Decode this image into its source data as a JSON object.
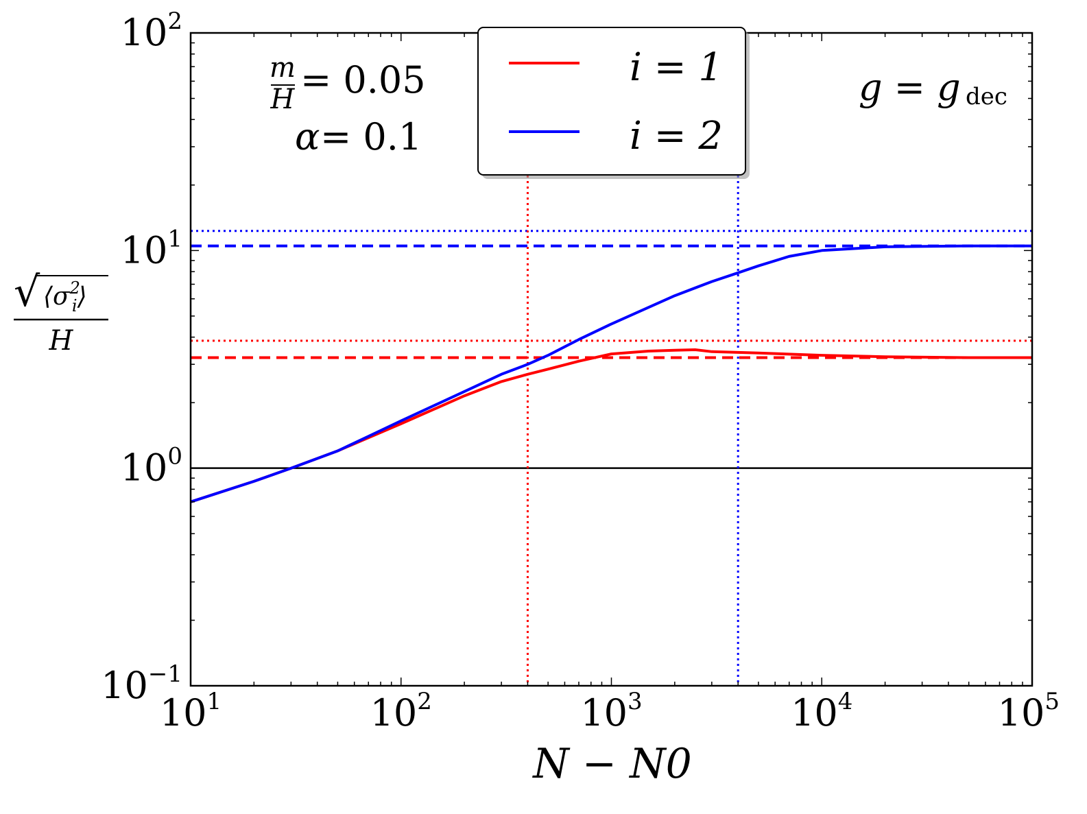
{
  "chart_data": {
    "type": "line",
    "x_scale": "log",
    "y_scale": "log",
    "xlim": [
      10,
      100000
    ],
    "ylim": [
      0.1,
      100
    ],
    "xlabel": "N − N0",
    "ylabel": "√⟨σi²⟩ / H",
    "x_ticks": [
      {
        "base": "10",
        "exp": "1",
        "value": 10
      },
      {
        "base": "10",
        "exp": "2",
        "value": 100
      },
      {
        "base": "10",
        "exp": "3",
        "value": 1000
      },
      {
        "base": "10",
        "exp": "4",
        "value": 10000
      },
      {
        "base": "10",
        "exp": "5",
        "value": 100000
      }
    ],
    "y_ticks": [
      {
        "base": "10",
        "exp": "−1",
        "value": 0.1
      },
      {
        "base": "10",
        "exp": "0",
        "value": 1
      },
      {
        "base": "10",
        "exp": "1",
        "value": 10
      },
      {
        "base": "10",
        "exp": "2",
        "value": 100
      }
    ],
    "annotations": {
      "m_over_H": "= 0.05",
      "alpha": "= 0.1",
      "g": "g = g",
      "g_sub": "dec"
    },
    "legend": {
      "placement": "upper center",
      "entries": [
        {
          "label": "i = 1",
          "color": "#ff0000"
        },
        {
          "label": "i = 2",
          "color": "#0000ff"
        }
      ]
    },
    "series": [
      {
        "name": "i = 1",
        "color": "#ff0000",
        "x": [
          10,
          20,
          30,
          50,
          70,
          100,
          200,
          300,
          400,
          500,
          700,
          1000,
          1500,
          2000,
          2500,
          3000,
          5000,
          10000,
          20000,
          50000,
          100000
        ],
        "y": [
          0.7,
          0.87,
          1.0,
          1.2,
          1.38,
          1.6,
          2.15,
          2.5,
          2.7,
          2.85,
          3.1,
          3.35,
          3.45,
          3.48,
          3.5,
          3.43,
          3.38,
          3.3,
          3.25,
          3.22,
          3.22
        ]
      },
      {
        "name": "i = 2",
        "color": "#0000ff",
        "x": [
          10,
          20,
          30,
          50,
          70,
          100,
          200,
          300,
          400,
          500,
          700,
          1000,
          2000,
          3000,
          4000,
          5000,
          7000,
          10000,
          20000,
          50000,
          100000
        ],
        "y": [
          0.7,
          0.87,
          1.0,
          1.2,
          1.4,
          1.65,
          2.25,
          2.7,
          3.0,
          3.3,
          3.9,
          4.6,
          6.2,
          7.2,
          7.9,
          8.5,
          9.4,
          10.0,
          10.4,
          10.5,
          10.5
        ]
      }
    ],
    "reference_lines": [
      {
        "orientation": "horizontal",
        "value": 1.0,
        "color": "#000000",
        "style": "solid"
      },
      {
        "orientation": "horizontal",
        "value": 3.22,
        "color": "#ff0000",
        "style": "dashed"
      },
      {
        "orientation": "horizontal",
        "value": 3.85,
        "color": "#ff0000",
        "style": "dotted"
      },
      {
        "orientation": "horizontal",
        "value": 10.5,
        "color": "#0000ff",
        "style": "dashed"
      },
      {
        "orientation": "horizontal",
        "value": 12.3,
        "color": "#0000ff",
        "style": "dotted"
      },
      {
        "orientation": "vertical",
        "value": 400,
        "color": "#ff0000",
        "style": "dotted"
      },
      {
        "orientation": "vertical",
        "value": 4000,
        "color": "#0000ff",
        "style": "dotted"
      }
    ]
  }
}
